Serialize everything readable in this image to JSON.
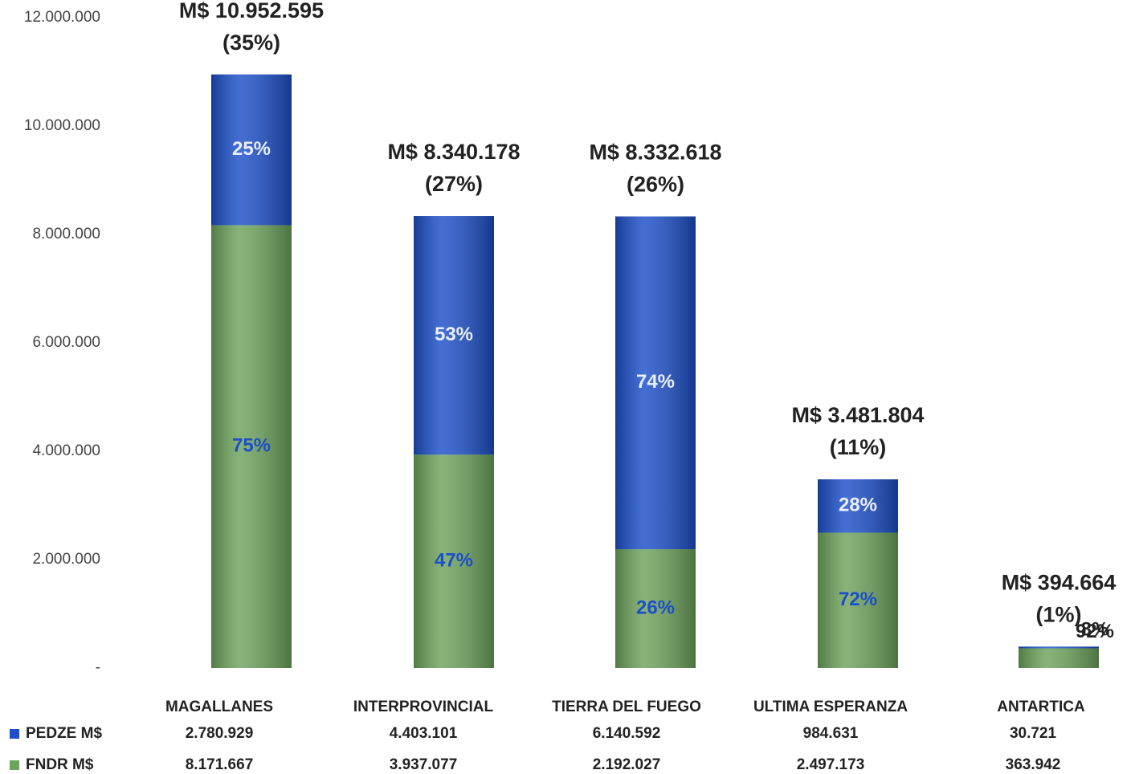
{
  "chart_data": {
    "type": "stacked_bar",
    "categories": [
      "MAGALLANES",
      "INTERPROVINCIAL",
      "TIERRA DEL FUEGO",
      "ULTIMA ESPERANZA",
      "ANTARTICA"
    ],
    "series": [
      {
        "name": "PEDZE M$",
        "color": "#1c4fc9",
        "values": [
          2780929,
          4403101,
          6140592,
          984631,
          30721
        ],
        "value_labels": [
          "2.780.929",
          "4.403.101",
          "6.140.592",
          "984.631",
          "30.721"
        ],
        "share_labels": [
          "25%",
          "53%",
          "74%",
          "28%",
          "8%"
        ]
      },
      {
        "name": "FNDR M$",
        "color": "#6da35c",
        "values": [
          8171667,
          3937077,
          2192027,
          2497173,
          363942
        ],
        "value_labels": [
          "8.171.667",
          "3.937.077",
          "2.192.027",
          "2.497.173",
          "363.942"
        ],
        "share_labels": [
          "75%",
          "47%",
          "26%",
          "72%",
          "92%"
        ]
      }
    ],
    "total_labels": [
      "M$ 10.952.595",
      "M$ 8.340.178",
      "M$ 8.332.618",
      "M$ 3.481.804",
      "M$ 394.664"
    ],
    "total_share_labels": [
      "(35%)",
      "(27%)",
      "(26%)",
      "(11%)",
      "(1%)"
    ],
    "ylim": [
      0,
      12000000
    ],
    "yticks": [
      {
        "value": 0,
        "label": "-"
      },
      {
        "value": 2000000,
        "label": "2.000.000"
      },
      {
        "value": 4000000,
        "label": "4.000.000"
      },
      {
        "value": 6000000,
        "label": "6.000.000"
      },
      {
        "value": 8000000,
        "label": "8.000.000"
      },
      {
        "value": 10000000,
        "label": "10.000.000"
      },
      {
        "value": 12000000,
        "label": "12.000.000"
      }
    ],
    "grid": false
  }
}
